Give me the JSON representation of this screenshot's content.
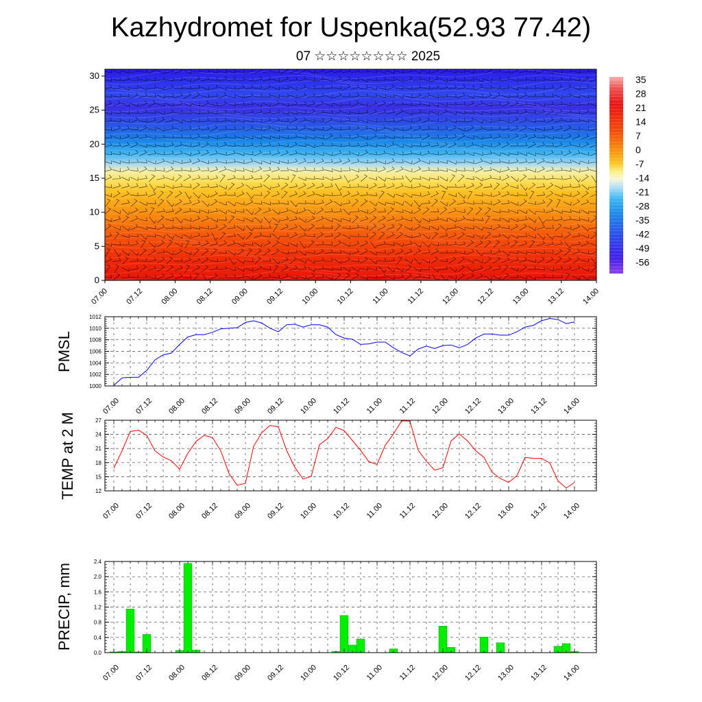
{
  "title": "Kazhydromet for Uspenka(52.93 77.42)",
  "subtitle": "07 ☆☆☆☆☆☆☆☆ 2025",
  "time_ticks": [
    "07.00",
    "07.12",
    "08.00",
    "08.12",
    "09.00",
    "09.12",
    "10.00",
    "10.12",
    "11.00",
    "11.12",
    "12.00",
    "12.12",
    "13.00",
    "13.12",
    "14.00"
  ],
  "colorbar": {
    "labels": [
      "35",
      "28",
      "21",
      "14",
      "7",
      "0",
      "-7",
      "-14",
      "-21",
      "-28",
      "-35",
      "-42",
      "-49",
      "-56"
    ]
  },
  "chart_data": [
    {
      "type": "heatmap",
      "title": "",
      "ylabel": "",
      "ylim": [
        0,
        31
      ],
      "yticks": [
        "0",
        "5",
        "10",
        "15",
        "20",
        "25",
        "30"
      ],
      "description_of_field": "temperature-like field with wind barbs; warm near bottom, cold aloft",
      "level_rows": [
        {
          "y": 0,
          "value": 32
        },
        {
          "y": 5,
          "value": 24
        },
        {
          "y": 10,
          "value": 12
        },
        {
          "y": 15,
          "value": 0
        },
        {
          "y": 17,
          "value": -12
        },
        {
          "y": 20,
          "value": -38
        },
        {
          "y": 23,
          "value": -52
        },
        {
          "y": 25,
          "value": -56
        },
        {
          "y": 28,
          "value": -52
        },
        {
          "y": 31,
          "value": -58
        }
      ]
    },
    {
      "type": "line",
      "ylabel": "PMSL",
      "ylim": [
        1000,
        1012
      ],
      "yticks": [
        "1000",
        "1002",
        "1004",
        "1006",
        "1008",
        "1010",
        "1012"
      ],
      "color": "#0000ff",
      "x": [
        0,
        3,
        6,
        9,
        12,
        15,
        18,
        21,
        24,
        27,
        30,
        33,
        36,
        39,
        42,
        45,
        48,
        51,
        54,
        57,
        60,
        63,
        66,
        69,
        72,
        75,
        78,
        81,
        84,
        87,
        90,
        93,
        96,
        99,
        102,
        105,
        108,
        111,
        114,
        117,
        120,
        123,
        126,
        129,
        132,
        135,
        138,
        141,
        144,
        147,
        150,
        153,
        156,
        159,
        162,
        165,
        168
      ],
      "values": [
        1000.1,
        1001.4,
        1001.5,
        1001.5,
        1002.7,
        1004.5,
        1005.4,
        1005.7,
        1007.2,
        1008.5,
        1008.9,
        1008.9,
        1009.3,
        1009.9,
        1010.0,
        1010.1,
        1011.0,
        1011.3,
        1010.9,
        1010.0,
        1009.4,
        1010.6,
        1010.7,
        1010.2,
        1010.6,
        1010.6,
        1010.2,
        1008.9,
        1008.3,
        1008.1,
        1007.2,
        1007.3,
        1007.6,
        1007.6,
        1006.6,
        1005.8,
        1005.2,
        1006.4,
        1006.9,
        1006.5,
        1007.0,
        1007.1,
        1006.6,
        1007.2,
        1008.3,
        1009.0,
        1009.0,
        1008.8,
        1008.8,
        1009.4,
        1010.2,
        1010.5,
        1011.3,
        1011.7,
        1011.5,
        1010.8,
        1011.1
      ]
    },
    {
      "type": "line",
      "ylabel": "TEMP at 2 M",
      "ylim": [
        12,
        27
      ],
      "yticks": [
        "12",
        "15",
        "18",
        "21",
        "24",
        "27"
      ],
      "color": "#ff0000",
      "x": [
        0,
        3,
        6,
        9,
        12,
        15,
        18,
        21,
        24,
        27,
        30,
        33,
        36,
        39,
        42,
        45,
        48,
        51,
        54,
        57,
        60,
        63,
        66,
        69,
        72,
        75,
        78,
        81,
        84,
        87,
        90,
        93,
        96,
        99,
        102,
        105,
        108,
        111,
        114,
        117,
        120,
        123,
        126,
        129,
        132,
        135,
        138,
        141,
        144,
        147,
        150,
        153,
        156,
        159,
        162,
        165,
        168
      ],
      "values": [
        16.8,
        20.5,
        24.6,
        24.9,
        23.8,
        20.5,
        19.2,
        18.4,
        16.6,
        20.0,
        22.5,
        23.8,
        23.3,
        20.5,
        15.7,
        13.2,
        13.6,
        21.5,
        24.4,
        25.9,
        25.6,
        20.6,
        17.0,
        14.5,
        15.1,
        21.8,
        23.1,
        25.5,
        24.8,
        22.7,
        20.6,
        18.2,
        17.6,
        21.7,
        24.1,
        26.9,
        26.8,
        20.6,
        18.3,
        16.4,
        16.9,
        22.6,
        24.1,
        22.6,
        20.5,
        19.1,
        15.9,
        14.6,
        13.8,
        15.2,
        19.1,
        18.9,
        18.9,
        17.9,
        14.1,
        12.6,
        13.8
      ]
    },
    {
      "type": "bar",
      "ylabel": "PRECIP, mm",
      "ylim": [
        0,
        2.4
      ],
      "yticks": [
        "0.0",
        "0.4",
        "0.8",
        "1.2",
        "1.6",
        "2.0",
        "2.4"
      ],
      "color": "#00ee00",
      "x": [
        0,
        3,
        6,
        9,
        12,
        15,
        18,
        21,
        24,
        27,
        30,
        33,
        36,
        39,
        42,
        45,
        48,
        51,
        54,
        57,
        60,
        63,
        66,
        69,
        72,
        75,
        78,
        81,
        84,
        87,
        90,
        93,
        96,
        99,
        102,
        105,
        108,
        111,
        114,
        117,
        120,
        123,
        126,
        129,
        132,
        135,
        138,
        141,
        144,
        147,
        150,
        153,
        156,
        159,
        162,
        165,
        168
      ],
      "values": [
        0.02,
        0.03,
        1.15,
        0.02,
        0.48,
        0,
        0,
        0,
        0.06,
        2.35,
        0.07,
        0,
        0,
        0,
        0,
        0,
        0,
        0,
        0,
        0,
        0,
        0,
        0,
        0,
        0,
        0,
        0,
        0.03,
        0.98,
        0.2,
        0.36,
        0,
        0,
        0,
        0.1,
        0,
        0,
        0,
        0,
        0,
        0.7,
        0.14,
        0,
        0,
        0,
        0.41,
        0,
        0.26,
        0,
        0,
        0,
        0,
        0,
        0,
        0.17,
        0.24,
        0.03
      ]
    }
  ]
}
